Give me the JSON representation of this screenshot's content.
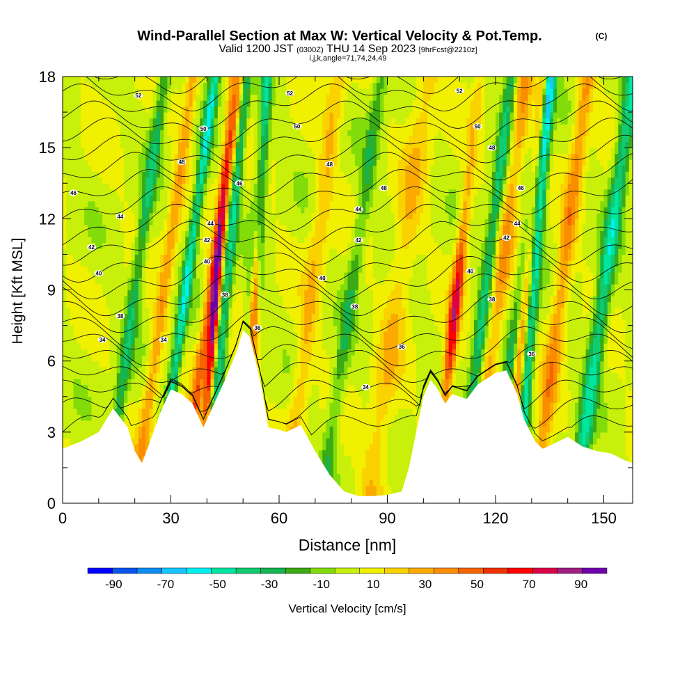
{
  "header": {
    "title": "Wind-Parallel Section at Max W: Vertical Velocity & Pot.Temp.",
    "copyright": "(C)",
    "valid_main_1": "Valid 1200 JST",
    "valid_z": "(0300Z)",
    "valid_main_2": "THU 14 Sep 2023",
    "fcst": "[9hrFcst@2210z]",
    "index": "i,j,k,angle=71,74,24,49"
  },
  "chart_data": {
    "type": "heatmap",
    "xlabel": "Distance [nm]",
    "ylabel": "Height [Kft MSL]",
    "xlim": [
      0,
      158
    ],
    "ylim": [
      0,
      18
    ],
    "x_ticks": [
      0,
      30,
      60,
      90,
      120,
      150
    ],
    "y_ticks": [
      0,
      3,
      6,
      9,
      12,
      15,
      18
    ],
    "colorbar": {
      "label": "Vertical Velocity [cm/s]",
      "ticks": [
        -90,
        -70,
        -50,
        -30,
        -10,
        10,
        30,
        50,
        70,
        90
      ],
      "bins": [
        -100,
        -90,
        -80,
        -70,
        -60,
        -50,
        -40,
        -30,
        -20,
        -10,
        0,
        10,
        20,
        30,
        40,
        50,
        60,
        70,
        80,
        90,
        100
      ],
      "colors": [
        "#0000ff",
        "#0a55f0",
        "#0a8cf0",
        "#14c8ff",
        "#00f0f0",
        "#00e6a0",
        "#10cc70",
        "#14b450",
        "#3caa14",
        "#82dc0a",
        "#c8f00a",
        "#f0f000",
        "#fad200",
        "#faaa00",
        "#fa8c00",
        "#f56400",
        "#f03200",
        "#ff0000",
        "#dc0046",
        "#a01e82",
        "#6e00aa"
      ]
    },
    "terrain_kft": [
      [
        0,
        2.3
      ],
      [
        5,
        2.6
      ],
      [
        10,
        3.0
      ],
      [
        14,
        4.0
      ],
      [
        18,
        3.2
      ],
      [
        20,
        2.2
      ],
      [
        22,
        1.7
      ],
      [
        24,
        2.5
      ],
      [
        27,
        3.8
      ],
      [
        30,
        4.8
      ],
      [
        33,
        4.6
      ],
      [
        36,
        4.2
      ],
      [
        39,
        3.2
      ],
      [
        42,
        4.2
      ],
      [
        45,
        5.2
      ],
      [
        48,
        6.3
      ],
      [
        50,
        7.3
      ],
      [
        52,
        7.0
      ],
      [
        55,
        5.0
      ],
      [
        57,
        3.2
      ],
      [
        60,
        3.1
      ],
      [
        62,
        3.0
      ],
      [
        66,
        3.3
      ],
      [
        70,
        2.2
      ],
      [
        74,
        1.2
      ],
      [
        78,
        0.5
      ],
      [
        82,
        0.3
      ],
      [
        86,
        0.3
      ],
      [
        90,
        0.35
      ],
      [
        94,
        0.5
      ],
      [
        96,
        1.5
      ],
      [
        98,
        3.0
      ],
      [
        100,
        4.5
      ],
      [
        102,
        5.2
      ],
      [
        104,
        4.8
      ],
      [
        106,
        4.2
      ],
      [
        108,
        4.6
      ],
      [
        110,
        4.5
      ],
      [
        112,
        4.4
      ],
      [
        115,
        5.0
      ],
      [
        118,
        5.3
      ],
      [
        120,
        5.5
      ],
      [
        123,
        5.6
      ],
      [
        126,
        4.6
      ],
      [
        128,
        3.5
      ],
      [
        131,
        2.6
      ],
      [
        133,
        2.3
      ],
      [
        136,
        2.5
      ],
      [
        140,
        2.8
      ],
      [
        144,
        2.4
      ],
      [
        148,
        2.2
      ],
      [
        152,
        2.1
      ],
      [
        156,
        1.8
      ],
      [
        158,
        1.7
      ]
    ],
    "vv_features": [
      {
        "x0": 12,
        "slope": 0.9,
        "width": 1.8,
        "amp": -35
      },
      {
        "x0": 26,
        "slope": 0.9,
        "width": 1.5,
        "amp": -55
      },
      {
        "x0": 40,
        "slope": 0.6,
        "width": 1.5,
        "amp": -45
      },
      {
        "x0": 50,
        "slope": 0.35,
        "width": 1.6,
        "amp": -60
      },
      {
        "x0": 72,
        "slope": 0.9,
        "width": 2.0,
        "amp": -25
      },
      {
        "x0": 110,
        "slope": 0.8,
        "width": 1.8,
        "amp": -40
      },
      {
        "x0": 119,
        "slope": 0.9,
        "width": 1.8,
        "amp": -35
      },
      {
        "x0": 126,
        "slope": 0.5,
        "width": 1.6,
        "amp": -55
      },
      {
        "x0": 142,
        "slope": 0.9,
        "width": 2.2,
        "amp": -50
      },
      {
        "x0": 20,
        "slope": 0.9,
        "width": 1.8,
        "amp": 30
      },
      {
        "x0": 33,
        "slope": 0.9,
        "width": 1.6,
        "amp": 45
      },
      {
        "x0": 38,
        "slope": 0.5,
        "width": 1.2,
        "amp": 75
      },
      {
        "x0": 51,
        "slope": 0.25,
        "width": 1.2,
        "amp": 80
      },
      {
        "x0": 62,
        "slope": 0.8,
        "width": 2.5,
        "amp": 22
      },
      {
        "x0": 85,
        "slope": 0.9,
        "width": 3.5,
        "amp": 20
      },
      {
        "x0": 103,
        "slope": 0.7,
        "width": 1.6,
        "amp": 60
      },
      {
        "x0": 114,
        "slope": 0.8,
        "width": 2.2,
        "amp": 30
      },
      {
        "x0": 123,
        "slope": 0.6,
        "width": 1.6,
        "amp": 45
      },
      {
        "x0": 131,
        "slope": 0.8,
        "width": 2.2,
        "amp": 35
      }
    ],
    "theta_isentropes": [
      32,
      33,
      34,
      35,
      36,
      37,
      38,
      39,
      40,
      41,
      42,
      43,
      44,
      45,
      46,
      47,
      48,
      49,
      50,
      51,
      52,
      53
    ],
    "theta_labels": [
      {
        "v": "52",
        "x": 21,
        "z": 17.2
      },
      {
        "v": "52",
        "x": 63,
        "z": 17.3
      },
      {
        "v": "52",
        "x": 110,
        "z": 17.4
      },
      {
        "v": "50",
        "x": 39,
        "z": 15.8
      },
      {
        "v": "50",
        "x": 65,
        "z": 15.9
      },
      {
        "v": "50",
        "x": 115,
        "z": 15.9
      },
      {
        "v": "48",
        "x": 33,
        "z": 14.4
      },
      {
        "v": "48",
        "x": 74,
        "z": 14.3
      },
      {
        "v": "48",
        "x": 89,
        "z": 13.3
      },
      {
        "v": "48",
        "x": 119,
        "z": 15.0
      },
      {
        "v": "46",
        "x": 3,
        "z": 13.1
      },
      {
        "v": "46",
        "x": 49,
        "z": 13.5
      },
      {
        "v": "46",
        "x": 127,
        "z": 13.3
      },
      {
        "v": "44",
        "x": 16,
        "z": 12.1
      },
      {
        "v": "44",
        "x": 41,
        "z": 11.8
      },
      {
        "v": "44",
        "x": 82,
        "z": 12.4
      },
      {
        "v": "44",
        "x": 126,
        "z": 11.8
      },
      {
        "v": "42",
        "x": 8,
        "z": 10.8
      },
      {
        "v": "42",
        "x": 40,
        "z": 11.1
      },
      {
        "v": "42",
        "x": 82,
        "z": 11.1
      },
      {
        "v": "42",
        "x": 123,
        "z": 11.2
      },
      {
        "v": "40",
        "x": 10,
        "z": 9.7
      },
      {
        "v": "40",
        "x": 40,
        "z": 10.2
      },
      {
        "v": "40",
        "x": 72,
        "z": 9.5
      },
      {
        "v": "40",
        "x": 113,
        "z": 9.8
      },
      {
        "v": "38",
        "x": 16,
        "z": 7.9
      },
      {
        "v": "38",
        "x": 45,
        "z": 8.8
      },
      {
        "v": "38",
        "x": 81,
        "z": 8.3
      },
      {
        "v": "38",
        "x": 119,
        "z": 8.6
      },
      {
        "v": "36",
        "x": 54,
        "z": 7.4
      },
      {
        "v": "36",
        "x": 94,
        "z": 6.6
      },
      {
        "v": "36",
        "x": 130,
        "z": 6.3
      },
      {
        "v": "34",
        "x": 11,
        "z": 6.9
      },
      {
        "v": "34",
        "x": 28,
        "z": 6.9
      },
      {
        "v": "34",
        "x": 84,
        "z": 4.9
      }
    ]
  }
}
